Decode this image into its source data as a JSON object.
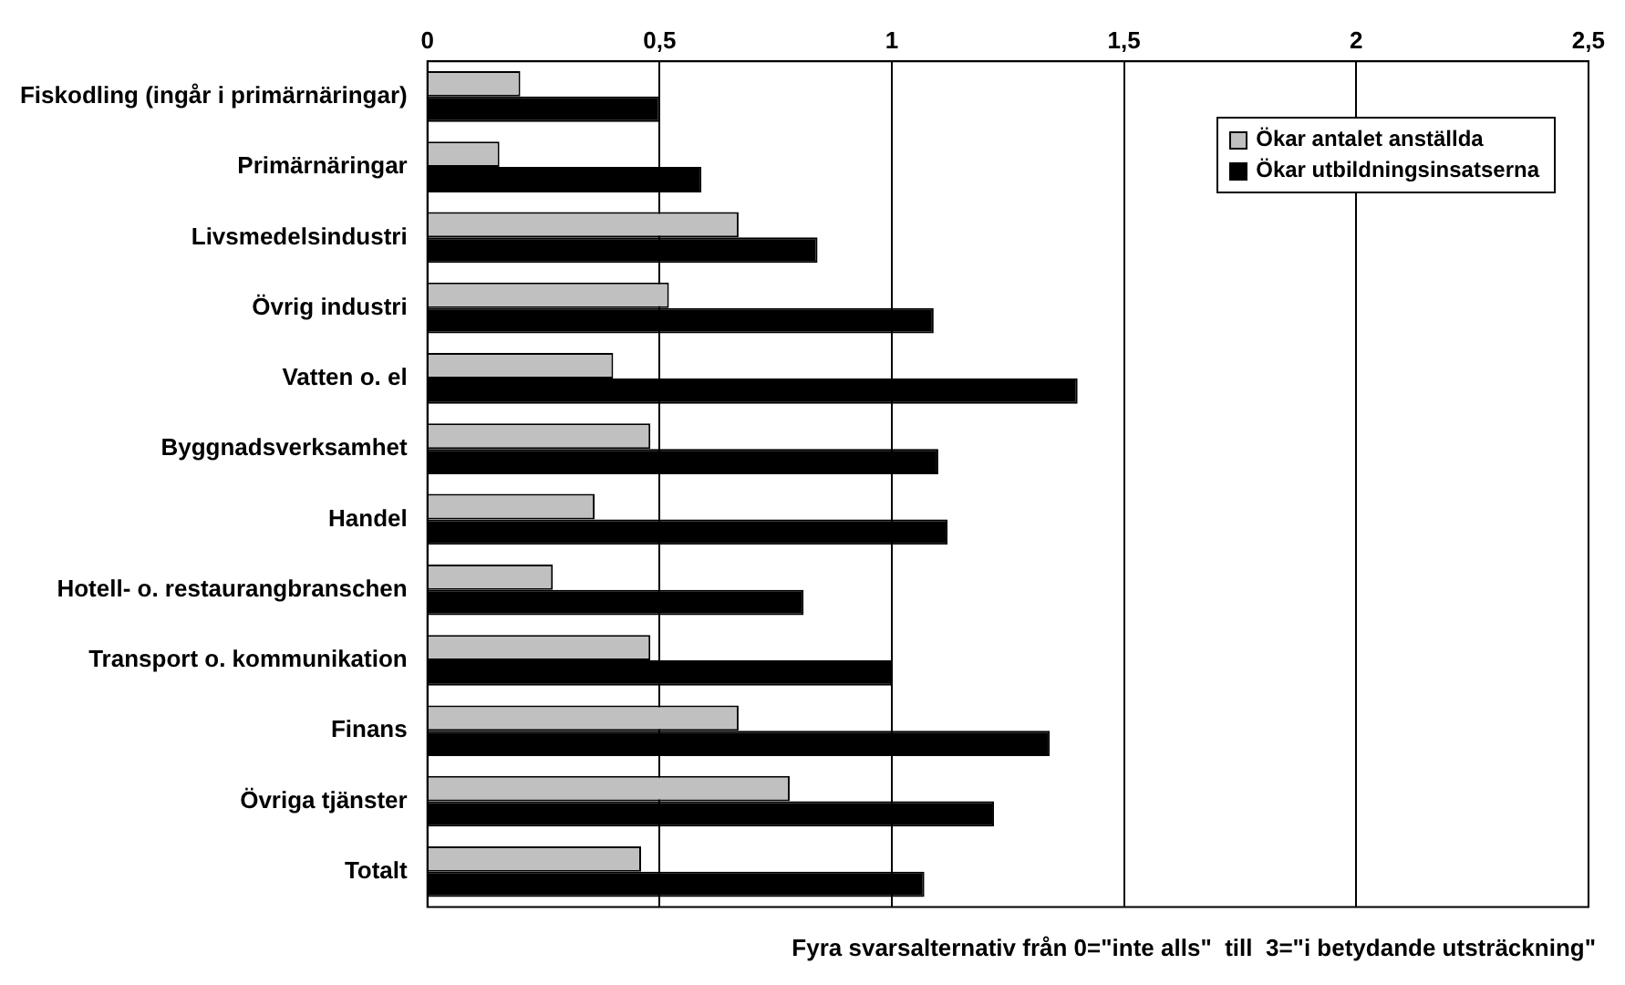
{
  "chart_data": {
    "type": "bar",
    "orientation": "horizontal",
    "xlabel": "Fyra svarsalternativ från 0=\"inte alls\"  till  3=\"i betydande utsträckning\"",
    "categories": [
      "Fiskodling (ingår i primärnäringar)",
      "Primärnäringar",
      "Livsmedelsindustri",
      "Övrig industri",
      "Vatten o. el",
      "Byggnadsverksamhet",
      "Handel",
      "Hotell- o. restaurangbranschen",
      "Transport o. kommunikation",
      "Finans",
      "Övriga tjänster",
      "Totalt"
    ],
    "series": [
      {
        "name": "Ökar antalet anställda",
        "color": "#c0c0c0",
        "values": [
          0.2,
          0.155,
          0.67,
          0.52,
          0.4,
          0.48,
          0.36,
          0.27,
          0.48,
          0.67,
          0.78,
          0.46
        ]
      },
      {
        "name": "Ökar utbildningsinsatserna",
        "color": "#000000",
        "values": [
          0.5,
          0.59,
          0.84,
          1.09,
          1.4,
          1.1,
          1.12,
          0.81,
          1.0,
          1.34,
          1.22,
          1.07
        ]
      }
    ],
    "xlim": [
      0,
      2.5
    ],
    "xticks": [
      {
        "value": 0,
        "label": "0"
      },
      {
        "value": 0.5,
        "label": "0,5"
      },
      {
        "value": 1,
        "label": "1"
      },
      {
        "value": 1.5,
        "label": "1,5"
      },
      {
        "value": 2,
        "label": "2"
      },
      {
        "value": 2.5,
        "label": "2,5"
      }
    ],
    "grid": "x",
    "legend": "top right"
  }
}
